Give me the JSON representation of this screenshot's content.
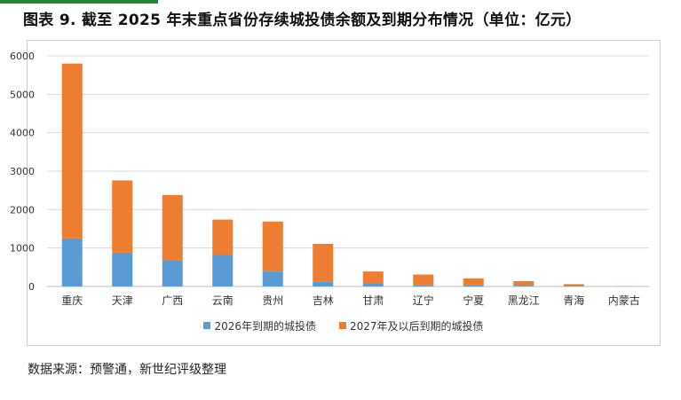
{
  "title": "图表 9. 截至 2025 年末重点省份存续城投债余额及到期分布情况（单位：亿元）",
  "source": "数据来源：预警通，新世纪评级整理",
  "colors": {
    "series_2026": "#5b9bd5",
    "series_2027plus": "#ed7d31"
  },
  "chart_data": {
    "type": "bar",
    "stacked": true,
    "categories": [
      "重庆",
      "天津",
      "广西",
      "云南",
      "贵州",
      "吉林",
      "甘肃",
      "辽宁",
      "宁夏",
      "黑龙江",
      "青海",
      "内蒙古"
    ],
    "series": [
      {
        "name": "2026年到期的城投债",
        "values": [
          1250,
          880,
          670,
          830,
          390,
          120,
          90,
          40,
          30,
          20,
          10,
          0
        ]
      },
      {
        "name": "2027年及以后到期的城投债",
        "values": [
          4550,
          1880,
          1710,
          910,
          1300,
          990,
          300,
          270,
          180,
          120,
          50,
          5
        ]
      }
    ],
    "ylim": [
      0,
      6000
    ],
    "yticks": [
      "0",
      "1000",
      "2000",
      "3000",
      "4000",
      "5000",
      "6000"
    ],
    "grid": true,
    "legend": "bottom"
  }
}
